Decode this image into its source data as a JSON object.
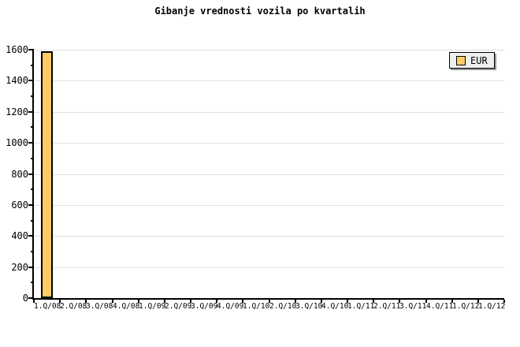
{
  "title": "Gibanje vrednosti vozila po kvartalih",
  "legend": {
    "label": "EUR"
  },
  "colors": {
    "background": "#ffffff",
    "bar_fill": "#ffcc66",
    "bar_border": "#000000",
    "grid": "#e0e0e0",
    "axis": "#000000",
    "text": "#000000",
    "legend_bg": "#efefef",
    "legend_shadow": "#999999"
  },
  "chart_data": {
    "type": "bar",
    "title": "Gibanje vrednosti vozila po kvartalih",
    "xlabel": "",
    "ylabel": "",
    "categories": [
      "1.Q/08",
      "2.Q/08",
      "3.Q/08",
      "4.Q/08",
      "1.Q/09",
      "2.Q/09",
      "3.Q/09",
      "4.Q/09",
      "1.Q/10",
      "2.Q/10",
      "3.Q/10",
      "4.Q/10",
      "1.Q/11",
      "2.Q/11",
      "3.Q/11",
      "4.Q/11",
      "1.Q/12",
      "1.Q/12"
    ],
    "series": [
      {
        "name": "EUR",
        "color": "#ffcc66",
        "values": [
          1590,
          0,
          0,
          0,
          0,
          0,
          0,
          0,
          0,
          0,
          0,
          0,
          0,
          0,
          0,
          0,
          0,
          0
        ]
      }
    ],
    "ylim": [
      0,
      1600
    ],
    "y_major_step": 200,
    "y_minor_step": 100,
    "y_ticks": [
      0,
      200,
      400,
      600,
      800,
      1000,
      1200,
      1400,
      1600
    ],
    "grid": true,
    "legend_position": "top-right"
  }
}
